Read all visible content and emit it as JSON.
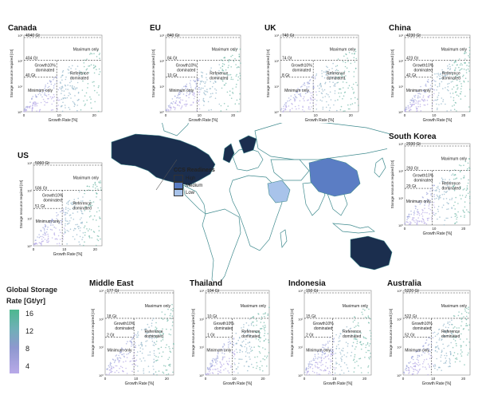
{
  "legend_ccs": {
    "title": "CCS Readiness",
    "items": [
      {
        "label": "High",
        "color": "#1b2e4e"
      },
      {
        "label": "Medium",
        "color": "#5b7dc4"
      },
      {
        "label": "Low",
        "color": "#a8c3ea"
      }
    ]
  },
  "colorbar": {
    "title_line1": "Global Storage",
    "title_line2": "Rate [Gt/yr]",
    "ticks": [
      "16",
      "12",
      "8",
      "4"
    ]
  },
  "axis_labels": {
    "x": "Growth Rate [%]",
    "y": "Storage resource required [Gt]"
  },
  "regions": [
    {
      "name": "Canada",
      "max": "4040 Gt",
      "mid": "404 Gt",
      "low": "40 Gt"
    },
    {
      "name": "EU",
      "max": "840 Gt",
      "mid": "84 Gt",
      "low": "10 Gt"
    },
    {
      "name": "UK",
      "max": "740 Gt",
      "mid": "74 Gt",
      "low": "8 Gt"
    },
    {
      "name": "China",
      "max": "4230 Gt",
      "mid": "423 Gt",
      "low": "42 Gt"
    },
    {
      "name": "US",
      "max": "5060 Gt",
      "mid": "506 Gt",
      "low": "51 Gt"
    },
    {
      "name": "South Korea",
      "max": "2930 Gt",
      "mid": "293 Gt",
      "low": "29 Gt"
    },
    {
      "name": "Middle East",
      "max": "177 Gt",
      "mid": "18 Gt",
      "low": "2 Gt"
    },
    {
      "name": "Thailand",
      "max": "104 Gt",
      "mid": "10 Gt",
      "low": "1 Gt"
    },
    {
      "name": "Indonesia",
      "max": "150 Gt",
      "mid": "15 Gt",
      "low": "2 Gt"
    },
    {
      "name": "Australia",
      "max": "5220 Gt",
      "mid": "522 Gt",
      "low": "52 Gt"
    }
  ],
  "zones": {
    "maximum": "Maximum only",
    "growth_l1": "Growth10%",
    "growth_l2": "dominated",
    "ref_l1": "Reference",
    "ref_l2": "dominated",
    "minimum": "Minimum only"
  },
  "ticks": {
    "x": [
      "0",
      "10",
      "20"
    ],
    "y": [
      "10³",
      "10²",
      "10¹",
      "10⁰"
    ]
  }
}
